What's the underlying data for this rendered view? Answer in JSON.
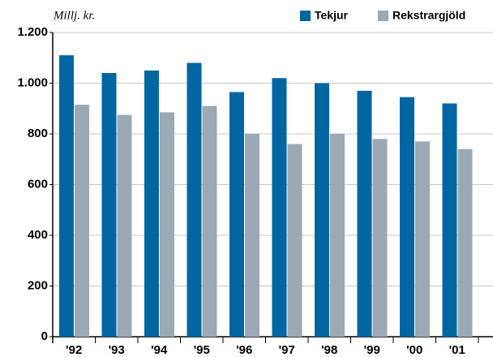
{
  "chart_data": {
    "type": "bar",
    "y_axis_label": "Millj. kr.",
    "categories": [
      "'92",
      "'93",
      "'94",
      "'95",
      "'96",
      "'97",
      "'98",
      "'99",
      "'00",
      "'01"
    ],
    "series": [
      {
        "name": "Tekjur",
        "color": "#0066a1",
        "values": [
          1110,
          1040,
          1050,
          1080,
          965,
          1020,
          1000,
          970,
          945,
          920
        ]
      },
      {
        "name": "Rekstrargjöld",
        "color": "#9aa9b3",
        "values": [
          915,
          875,
          885,
          910,
          800,
          760,
          800,
          780,
          770,
          740
        ]
      }
    ],
    "ylim": [
      0,
      1200
    ],
    "yticks": [
      0,
      200,
      400,
      600,
      800,
      {
        "value": 1000,
        "label": "1.000"
      },
      {
        "value": 1200,
        "label": "1.200"
      }
    ],
    "grid": true
  }
}
